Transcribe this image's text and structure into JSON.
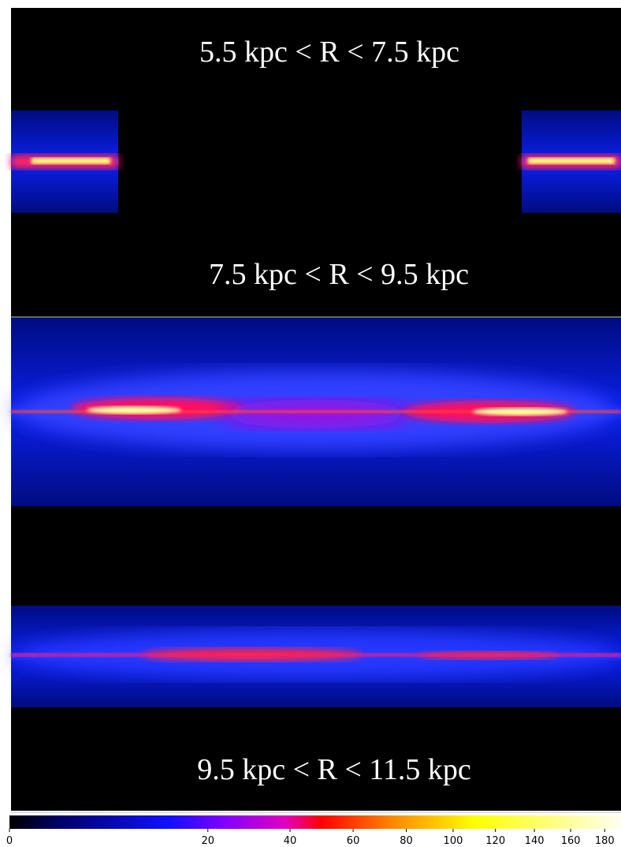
{
  "panels": [
    {
      "label": "5.5 kpc < R < 7.5 kpc"
    },
    {
      "label": "7.5 kpc < R < 9.5 kpc"
    },
    {
      "label": "9.5 kpc < R < 11.5 kpc"
    }
  ],
  "colorbar": {
    "scale": "sqrt",
    "lim": [
      0,
      190
    ],
    "ticks": [
      0,
      20,
      40,
      60,
      80,
      100,
      120,
      140,
      160,
      180
    ]
  }
}
